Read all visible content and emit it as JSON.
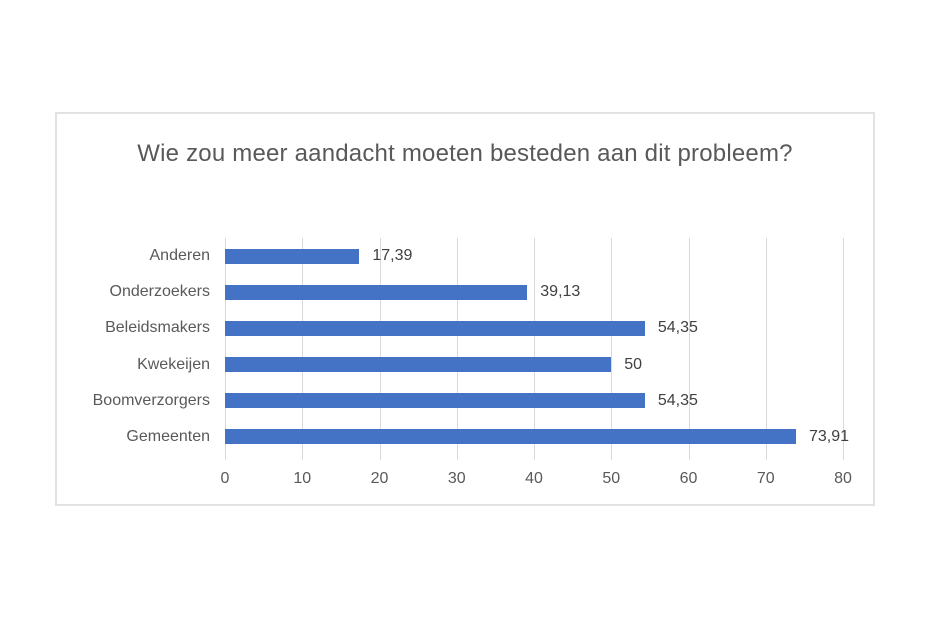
{
  "chart_data": {
    "type": "bar",
    "orientation": "horizontal",
    "title": "Wie zou meer aandacht moeten besteden aan dit probleem?",
    "categories": [
      "Anderen",
      "Onderzoekers",
      "Beleidsmakers",
      "Kwekeijen",
      "Boomverzorgers",
      "Gemeenten"
    ],
    "values": [
      17.39,
      39.13,
      54.35,
      50,
      54.35,
      73.91
    ],
    "value_labels": [
      "17,39",
      "39,13",
      "54,35",
      "50",
      "54,35",
      "73,91"
    ],
    "xlabel": "",
    "ylabel": "",
    "xlim": [
      0,
      80
    ],
    "xticks": [
      0,
      10,
      20,
      30,
      40,
      50,
      60,
      70,
      80
    ],
    "grid": "vertical-only",
    "legend": "none",
    "data_labels": "outside-end",
    "colors": {
      "bar": "#4472C4",
      "gridline": "#D9D9D9",
      "title_text": "#595959",
      "axis_text": "#595959",
      "value_text": "#404040",
      "frame_border": "#E2E2E2",
      "background": "#FFFFFF"
    }
  }
}
